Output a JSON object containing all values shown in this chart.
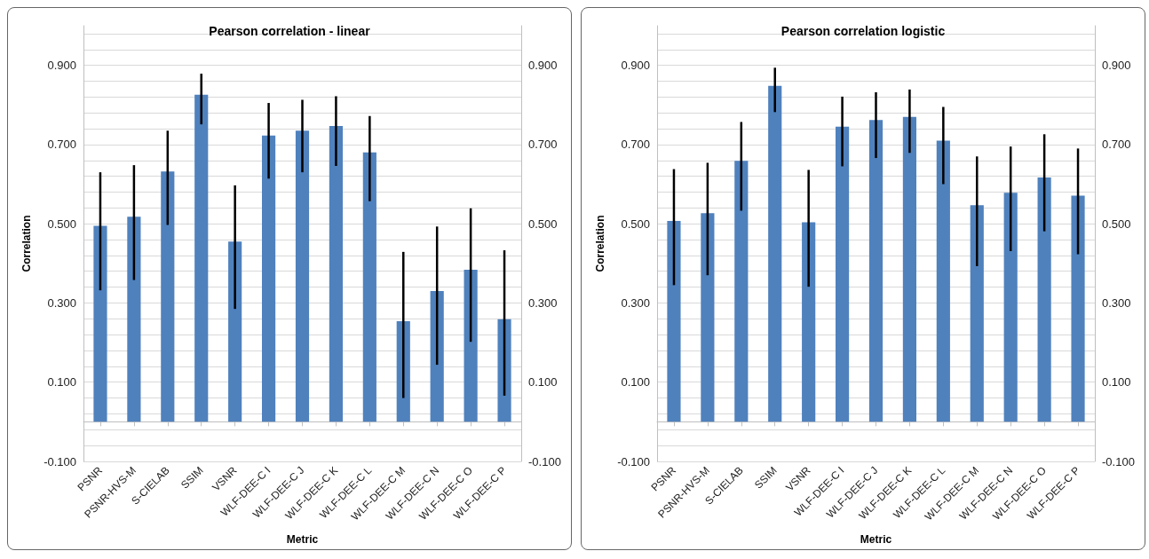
{
  "chart_data": [
    {
      "type": "bar",
      "title": "Pearson correlation - linear",
      "xlabel": "Metric",
      "ylabel": "Correlation",
      "categories": [
        "PSNR",
        "PSNR-HVS-M",
        "S-CIELAB",
        "SSIM",
        "VSNR",
        "WLF-DEE-C I",
        "WLF-DEE-C J",
        "WLF-DEE-C K",
        "WLF-DEE-C L",
        "WLF-DEE-C M",
        "WLF-DEE-C N",
        "WLF-DEE-C O",
        "WLF-DEE-C P"
      ],
      "series": [
        {
          "color": "#4f81bd",
          "values": [
            0.495,
            0.518,
            0.632,
            0.826,
            0.455,
            0.723,
            0.735,
            0.747,
            0.68,
            0.254,
            0.33,
            0.384,
            0.259
          ],
          "errors": [
            [
              0.332,
              0.63
            ],
            [
              0.358,
              0.648
            ],
            [
              0.497,
              0.735
            ],
            [
              0.751,
              0.879
            ],
            [
              0.285,
              0.597
            ],
            [
              0.614,
              0.805
            ],
            [
              0.63,
              0.813
            ],
            [
              0.646,
              0.822
            ],
            [
              0.557,
              0.772
            ],
            [
              0.06,
              0.429
            ],
            [
              0.144,
              0.493
            ],
            [
              0.202,
              0.539
            ],
            [
              0.066,
              0.433
            ]
          ]
        }
      ],
      "ylim": [
        -0.1,
        1.0
      ],
      "yticks": [
        {
          "value": -0.1,
          "label": "-0.100"
        },
        {
          "value": -0.06,
          "label": null
        },
        {
          "value": -0.02,
          "label": null
        },
        {
          "value": 0.02,
          "label": null
        },
        {
          "value": 0.06,
          "label": null
        },
        {
          "value": 0.1,
          "label": "0.100"
        },
        {
          "value": 0.14,
          "label": null
        },
        {
          "value": 0.18,
          "label": null
        },
        {
          "value": 0.22,
          "label": null
        },
        {
          "value": 0.26,
          "label": null
        },
        {
          "value": 0.3,
          "label": "0.300"
        },
        {
          "value": 0.34,
          "label": null
        },
        {
          "value": 0.38,
          "label": null
        },
        {
          "value": 0.42,
          "label": null
        },
        {
          "value": 0.46,
          "label": null
        },
        {
          "value": 0.5,
          "label": "0.500"
        },
        {
          "value": 0.54,
          "label": null
        },
        {
          "value": 0.58,
          "label": null
        },
        {
          "value": 0.62,
          "label": null
        },
        {
          "value": 0.66,
          "label": null
        },
        {
          "value": 0.7,
          "label": "0.700"
        },
        {
          "value": 0.74,
          "label": null
        },
        {
          "value": 0.78,
          "label": null
        },
        {
          "value": 0.82,
          "label": null
        },
        {
          "value": 0.86,
          "label": null
        },
        {
          "value": 0.9,
          "label": "0.900"
        },
        {
          "value": 0.94,
          "label": null
        },
        {
          "value": 0.98,
          "label": null
        }
      ],
      "y2lim": [
        -0.1,
        1.0
      ],
      "y2ticks": [
        {
          "value": -0.1,
          "label": "-0.100"
        },
        {
          "value": 0.1,
          "label": "0.100"
        },
        {
          "value": 0.3,
          "label": "0.300"
        },
        {
          "value": 0.5,
          "label": "0.500"
        },
        {
          "value": 0.7,
          "label": "0.700"
        },
        {
          "value": 0.9,
          "label": "0.900"
        }
      ],
      "grid": "y"
    },
    {
      "type": "bar",
      "title": "Pearson correlation logistic",
      "xlabel": "Metric",
      "ylabel": "Correlation",
      "categories": [
        "PSNR",
        "PSNR-HVS-M",
        "S-CIELAB",
        "SSIM",
        "VSNR",
        "WLF-DEE-C I",
        "WLF-DEE-C J",
        "WLF-DEE-C K",
        "WLF-DEE-C L",
        "WLF-DEE-C M",
        "WLF-DEE-C N",
        "WLF-DEE-C O",
        "WLF-DEE-C P"
      ],
      "series": [
        {
          "color": "#4f81bd",
          "values": [
            0.507,
            0.527,
            0.659,
            0.848,
            0.504,
            0.745,
            0.762,
            0.77,
            0.71,
            0.547,
            0.578,
            0.617,
            0.571
          ],
          "errors": [
            [
              0.345,
              0.638
            ],
            [
              0.37,
              0.654
            ],
            [
              0.533,
              0.757
            ],
            [
              0.782,
              0.894
            ],
            [
              0.341,
              0.636
            ],
            [
              0.645,
              0.821
            ],
            [
              0.666,
              0.832
            ],
            [
              0.679,
              0.839
            ],
            [
              0.6,
              0.795
            ],
            [
              0.393,
              0.67
            ],
            [
              0.431,
              0.695
            ],
            [
              0.481,
              0.726
            ],
            [
              0.423,
              0.69
            ]
          ]
        }
      ],
      "ylim": [
        -0.1,
        1.0
      ],
      "yticks": [
        {
          "value": -0.1,
          "label": "-0.100"
        },
        {
          "value": -0.06,
          "label": null
        },
        {
          "value": -0.02,
          "label": null
        },
        {
          "value": 0.02,
          "label": null
        },
        {
          "value": 0.06,
          "label": null
        },
        {
          "value": 0.1,
          "label": "0.100"
        },
        {
          "value": 0.14,
          "label": null
        },
        {
          "value": 0.18,
          "label": null
        },
        {
          "value": 0.22,
          "label": null
        },
        {
          "value": 0.26,
          "label": null
        },
        {
          "value": 0.3,
          "label": "0.300"
        },
        {
          "value": 0.34,
          "label": null
        },
        {
          "value": 0.38,
          "label": null
        },
        {
          "value": 0.42,
          "label": null
        },
        {
          "value": 0.46,
          "label": null
        },
        {
          "value": 0.5,
          "label": "0.500"
        },
        {
          "value": 0.54,
          "label": null
        },
        {
          "value": 0.58,
          "label": null
        },
        {
          "value": 0.62,
          "label": null
        },
        {
          "value": 0.66,
          "label": null
        },
        {
          "value": 0.7,
          "label": "0.700"
        },
        {
          "value": 0.74,
          "label": null
        },
        {
          "value": 0.78,
          "label": null
        },
        {
          "value": 0.82,
          "label": null
        },
        {
          "value": 0.86,
          "label": null
        },
        {
          "value": 0.9,
          "label": "0.900"
        },
        {
          "value": 0.94,
          "label": null
        },
        {
          "value": 0.98,
          "label": null
        }
      ],
      "y2lim": [
        -0.1,
        1.0
      ],
      "y2ticks": [
        {
          "value": -0.1,
          "label": "-0.100"
        },
        {
          "value": 0.1,
          "label": "0.100"
        },
        {
          "value": 0.3,
          "label": "0.300"
        },
        {
          "value": 0.5,
          "label": "0.500"
        },
        {
          "value": 0.7,
          "label": "0.700"
        },
        {
          "value": 0.9,
          "label": "0.900"
        }
      ],
      "grid": "y"
    }
  ]
}
